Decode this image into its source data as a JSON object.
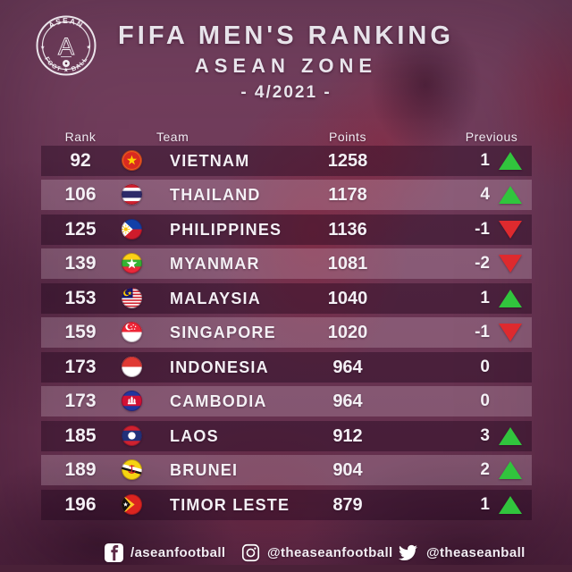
{
  "header": {
    "logo": {
      "top_text": "ASEAN",
      "monogram": "A",
      "bottom_text": "FOOT ★ BALL"
    },
    "title": "FIFA MEN'S RANKING",
    "subtitle": "ASEAN ZONE",
    "period": "- 4/2021 -"
  },
  "chart_data": {
    "type": "table",
    "title": "FIFA MEN'S RANKING",
    "subtitle": "ASEAN ZONE",
    "period": "- 4/2021 -",
    "columns": [
      "Rank",
      "Team",
      "Points",
      "Previous"
    ],
    "rows": [
      {
        "rank": "92",
        "team": "VIETNAM",
        "points": "1258",
        "previous": "1",
        "trend": "up",
        "flag": "flag-vietnam"
      },
      {
        "rank": "106",
        "team": "THAILAND",
        "points": "1178",
        "previous": "4",
        "trend": "up",
        "flag": "flag-thailand"
      },
      {
        "rank": "125",
        "team": "PHILIPPINES",
        "points": "1136",
        "previous": "-1",
        "trend": "down",
        "flag": "flag-philippines"
      },
      {
        "rank": "139",
        "team": "MYANMAR",
        "points": "1081",
        "previous": "-2",
        "trend": "down",
        "flag": "flag-myanmar"
      },
      {
        "rank": "153",
        "team": "MALAYSIA",
        "points": "1040",
        "previous": "1",
        "trend": "up",
        "flag": "flag-malaysia"
      },
      {
        "rank": "159",
        "team": "SINGAPORE",
        "points": "1020",
        "previous": "-1",
        "trend": "down",
        "flag": "flag-singapore"
      },
      {
        "rank": "173",
        "team": "INDONESIA",
        "points": "964",
        "previous": "0",
        "trend": "none",
        "flag": "flag-indonesia"
      },
      {
        "rank": "173",
        "team": "CAMBODIA",
        "points": "964",
        "previous": "0",
        "trend": "none",
        "flag": "flag-cambodia"
      },
      {
        "rank": "185",
        "team": "LAOS",
        "points": "912",
        "previous": "3",
        "trend": "up",
        "flag": "flag-laos"
      },
      {
        "rank": "189",
        "team": "BRUNEI",
        "points": "904",
        "previous": "2",
        "trend": "up",
        "flag": "flag-brunei"
      },
      {
        "rank": "196",
        "team": "TIMOR LESTE",
        "points": "879",
        "previous": "1",
        "trend": "up",
        "flag": "flag-timor-leste"
      }
    ]
  },
  "footer": {
    "facebook_handle": "/aseanfootball",
    "instagram_handle": "@theaseanfootball",
    "twitter_handle": "@theaseanball"
  },
  "colors": {
    "background_tint": "#6b3454",
    "row_dark_overlay": "rgba(30,4,28,0.40)",
    "row_light_overlay": "rgba(255,236,248,0.20)",
    "trend_up_green": "#31c43d",
    "trend_down_red": "#de2a2e",
    "text_white": "#f4f0f5",
    "bottom_bar": "#4a2138"
  }
}
